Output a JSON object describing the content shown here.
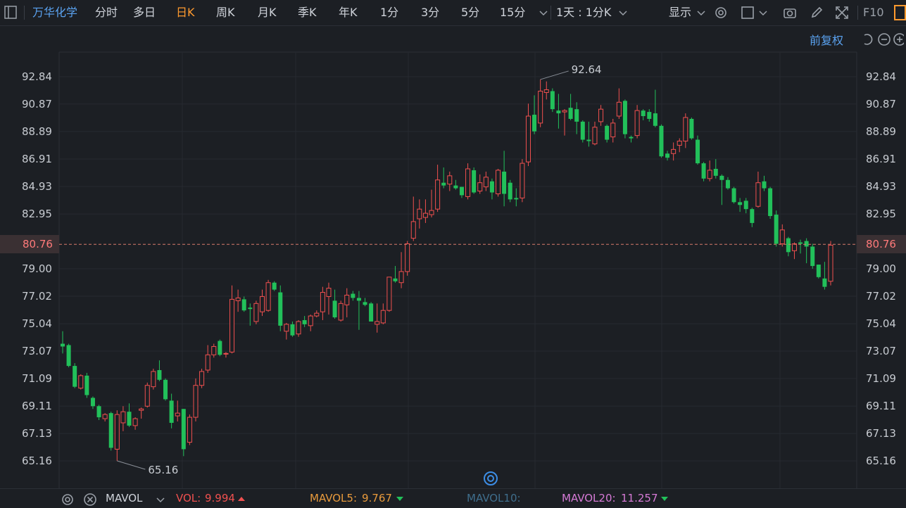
{
  "toolbar": {
    "stock_name": "万华化学",
    "periods": [
      "分时",
      "多日",
      "日K",
      "周K",
      "月K",
      "季K",
      "年K",
      "1分",
      "3分",
      "5分",
      "15分"
    ],
    "active_period": "日K",
    "interval_select": "1天 : 1分K",
    "display_menu": "显示",
    "f10": "F10"
  },
  "chart_header": {
    "adjust_mode": "前复权"
  },
  "axis": {
    "y_ticks": [
      "92.84",
      "90.87",
      "88.89",
      "86.91",
      "84.93",
      "82.95",
      "79.00",
      "77.02",
      "75.04",
      "73.07",
      "71.09",
      "69.11",
      "67.13",
      "65.16"
    ],
    "current_price": "80.76"
  },
  "annotations": {
    "high": "92.64",
    "low": "65.16"
  },
  "indicator_bar": {
    "name": "MAVOL",
    "vol_label": "VOL:",
    "vol_value": "9.994",
    "mavol5_label": "MAVOL5:",
    "mavol5_value": "9.767",
    "mavol10_label": "MAVOL10:",
    "mavol20_label": "MAVOL20:",
    "mavol20_value": "11.257"
  },
  "colors": {
    "up": "#f0504f",
    "down": "#22c05a",
    "accent": "#ff9a2e",
    "link": "#5aa2f0",
    "mavol5": "#e89a3c",
    "mavol10": "#3f6e8c",
    "mavol20": "#d67ad6"
  },
  "chart_data": {
    "type": "candlestick",
    "ylim": [
      65.16,
      92.84
    ],
    "current_price": 80.76,
    "high": 92.64,
    "low": 65.16,
    "candles": [
      {
        "o": 73.6,
        "h": 74.5,
        "l": 72.9,
        "c": 73.4
      },
      {
        "o": 73.5,
        "h": 73.6,
        "l": 71.9,
        "c": 72.0
      },
      {
        "o": 72.0,
        "h": 72.2,
        "l": 70.4,
        "c": 70.5
      },
      {
        "o": 70.4,
        "h": 71.4,
        "l": 70.3,
        "c": 71.3
      },
      {
        "o": 71.3,
        "h": 71.5,
        "l": 69.7,
        "c": 69.9
      },
      {
        "o": 69.7,
        "h": 69.8,
        "l": 68.9,
        "c": 69.1
      },
      {
        "o": 69.1,
        "h": 69.2,
        "l": 68.1,
        "c": 68.3
      },
      {
        "o": 68.2,
        "h": 68.6,
        "l": 68.0,
        "c": 68.5
      },
      {
        "o": 68.6,
        "h": 68.7,
        "l": 65.9,
        "c": 66.1
      },
      {
        "o": 66.0,
        "h": 68.8,
        "l": 65.16,
        "c": 68.5
      },
      {
        "o": 67.9,
        "h": 69.1,
        "l": 67.3,
        "c": 68.7
      },
      {
        "o": 68.7,
        "h": 69.3,
        "l": 67.6,
        "c": 67.7
      },
      {
        "o": 67.7,
        "h": 68.3,
        "l": 67.4,
        "c": 68.2
      },
      {
        "o": 68.8,
        "h": 69.0,
        "l": 68.2,
        "c": 68.9
      },
      {
        "o": 69.1,
        "h": 70.8,
        "l": 69.0,
        "c": 70.6
      },
      {
        "o": 70.5,
        "h": 71.8,
        "l": 70.3,
        "c": 71.6
      },
      {
        "o": 71.7,
        "h": 72.4,
        "l": 70.9,
        "c": 71.0
      },
      {
        "o": 71.0,
        "h": 71.1,
        "l": 69.5,
        "c": 69.6
      },
      {
        "o": 69.5,
        "h": 70.0,
        "l": 67.5,
        "c": 67.9
      },
      {
        "o": 68.4,
        "h": 69.5,
        "l": 68.0,
        "c": 68.6
      },
      {
        "o": 68.9,
        "h": 68.9,
        "l": 65.5,
        "c": 66.0
      },
      {
        "o": 66.5,
        "h": 68.5,
        "l": 66.3,
        "c": 68.3
      },
      {
        "o": 68.3,
        "h": 71.1,
        "l": 68.0,
        "c": 70.6
      },
      {
        "o": 70.6,
        "h": 71.8,
        "l": 70.4,
        "c": 71.6
      },
      {
        "o": 71.7,
        "h": 73.5,
        "l": 71.5,
        "c": 72.8
      },
      {
        "o": 72.8,
        "h": 73.6,
        "l": 72.6,
        "c": 73.4
      },
      {
        "o": 73.8,
        "h": 73.9,
        "l": 72.7,
        "c": 72.8
      },
      {
        "o": 72.9,
        "h": 73.0,
        "l": 72.6,
        "c": 72.9
      },
      {
        "o": 73.0,
        "h": 77.8,
        "l": 72.9,
        "c": 76.8
      },
      {
        "o": 76.7,
        "h": 77.5,
        "l": 75.9,
        "c": 76.9
      },
      {
        "o": 76.8,
        "h": 77.0,
        "l": 75.9,
        "c": 76.0
      },
      {
        "o": 76.2,
        "h": 76.5,
        "l": 74.9,
        "c": 76.1
      },
      {
        "o": 75.2,
        "h": 76.7,
        "l": 75.0,
        "c": 76.5
      },
      {
        "o": 75.9,
        "h": 77.5,
        "l": 75.6,
        "c": 77.0
      },
      {
        "o": 76.0,
        "h": 78.2,
        "l": 75.9,
        "c": 78.0
      },
      {
        "o": 78.0,
        "h": 78.1,
        "l": 77.4,
        "c": 77.5
      },
      {
        "o": 77.3,
        "h": 77.8,
        "l": 74.5,
        "c": 74.9
      },
      {
        "o": 74.5,
        "h": 75.1,
        "l": 73.9,
        "c": 75.0
      },
      {
        "o": 75.0,
        "h": 75.2,
        "l": 74.1,
        "c": 74.2
      },
      {
        "o": 74.3,
        "h": 75.3,
        "l": 74.1,
        "c": 75.2
      },
      {
        "o": 75.3,
        "h": 75.6,
        "l": 74.8,
        "c": 75.0
      },
      {
        "o": 74.9,
        "h": 75.7,
        "l": 74.5,
        "c": 75.6
      },
      {
        "o": 75.6,
        "h": 76.0,
        "l": 75.5,
        "c": 75.8
      },
      {
        "o": 75.9,
        "h": 77.7,
        "l": 75.3,
        "c": 77.3
      },
      {
        "o": 77.0,
        "h": 78.0,
        "l": 75.7,
        "c": 77.6
      },
      {
        "o": 76.7,
        "h": 77.5,
        "l": 75.4,
        "c": 75.5
      },
      {
        "o": 75.3,
        "h": 76.7,
        "l": 75.2,
        "c": 76.5
      },
      {
        "o": 76.4,
        "h": 77.6,
        "l": 75.5,
        "c": 77.1
      },
      {
        "o": 77.2,
        "h": 77.4,
        "l": 76.7,
        "c": 76.9
      },
      {
        "o": 76.9,
        "h": 77.4,
        "l": 74.6,
        "c": 76.7
      },
      {
        "o": 76.6,
        "h": 76.9,
        "l": 76.3,
        "c": 76.4
      },
      {
        "o": 76.5,
        "h": 76.6,
        "l": 75.2,
        "c": 75.2
      },
      {
        "o": 75.0,
        "h": 76.5,
        "l": 74.4,
        "c": 75.2
      },
      {
        "o": 75.1,
        "h": 76.5,
        "l": 75.0,
        "c": 76.0
      },
      {
        "o": 76.0,
        "h": 78.4,
        "l": 75.9,
        "c": 78.4
      },
      {
        "o": 78.3,
        "h": 79.2,
        "l": 78.0,
        "c": 78.1
      },
      {
        "o": 78.0,
        "h": 80.2,
        "l": 77.6,
        "c": 78.8
      },
      {
        "o": 78.8,
        "h": 81.0,
        "l": 78.5,
        "c": 80.8
      },
      {
        "o": 81.2,
        "h": 84.2,
        "l": 81.0,
        "c": 82.4
      },
      {
        "o": 82.6,
        "h": 84.0,
        "l": 81.9,
        "c": 83.3
      },
      {
        "o": 82.7,
        "h": 84.0,
        "l": 82.3,
        "c": 83.0
      },
      {
        "o": 82.9,
        "h": 84.7,
        "l": 82.7,
        "c": 83.2
      },
      {
        "o": 83.3,
        "h": 86.5,
        "l": 83.1,
        "c": 85.4
      },
      {
        "o": 85.2,
        "h": 86.3,
        "l": 84.8,
        "c": 85.0
      },
      {
        "o": 85.1,
        "h": 86.0,
        "l": 84.6,
        "c": 85.7
      },
      {
        "o": 85.0,
        "h": 85.4,
        "l": 84.7,
        "c": 84.8
      },
      {
        "o": 84.9,
        "h": 84.9,
        "l": 84.1,
        "c": 84.3
      },
      {
        "o": 84.2,
        "h": 86.6,
        "l": 84.0,
        "c": 86.2
      },
      {
        "o": 86.1,
        "h": 86.3,
        "l": 84.4,
        "c": 84.5
      },
      {
        "o": 84.6,
        "h": 85.8,
        "l": 84.4,
        "c": 85.2
      },
      {
        "o": 84.9,
        "h": 86.0,
        "l": 84.6,
        "c": 85.6
      },
      {
        "o": 85.3,
        "h": 85.5,
        "l": 84.0,
        "c": 84.5
      },
      {
        "o": 84.4,
        "h": 86.2,
        "l": 84.2,
        "c": 86.1
      },
      {
        "o": 86.0,
        "h": 87.5,
        "l": 83.5,
        "c": 84.4
      },
      {
        "o": 85.2,
        "h": 85.4,
        "l": 83.8,
        "c": 84.0
      },
      {
        "o": 84.1,
        "h": 84.8,
        "l": 83.5,
        "c": 84.0
      },
      {
        "o": 84.1,
        "h": 86.9,
        "l": 83.8,
        "c": 86.6
      },
      {
        "o": 86.7,
        "h": 90.9,
        "l": 86.4,
        "c": 90.0
      },
      {
        "o": 90.1,
        "h": 91.5,
        "l": 88.7,
        "c": 88.9
      },
      {
        "o": 89.5,
        "h": 92.64,
        "l": 89.2,
        "c": 91.8
      },
      {
        "o": 91.7,
        "h": 92.5,
        "l": 91.2,
        "c": 91.9
      },
      {
        "o": 91.8,
        "h": 92.0,
        "l": 90.3,
        "c": 90.5
      },
      {
        "o": 90.4,
        "h": 91.6,
        "l": 89.1,
        "c": 90.2
      },
      {
        "o": 90.3,
        "h": 90.5,
        "l": 88.6,
        "c": 90.4
      },
      {
        "o": 90.6,
        "h": 91.6,
        "l": 89.7,
        "c": 89.8
      },
      {
        "o": 90.5,
        "h": 91.0,
        "l": 88.7,
        "c": 89.6
      },
      {
        "o": 89.6,
        "h": 89.7,
        "l": 88.1,
        "c": 88.3
      },
      {
        "o": 88.3,
        "h": 89.6,
        "l": 87.8,
        "c": 88.2
      },
      {
        "o": 88.0,
        "h": 89.6,
        "l": 87.9,
        "c": 89.2
      },
      {
        "o": 89.6,
        "h": 90.8,
        "l": 89.3,
        "c": 90.5
      },
      {
        "o": 89.3,
        "h": 89.4,
        "l": 88.1,
        "c": 88.3
      },
      {
        "o": 88.5,
        "h": 89.8,
        "l": 88.1,
        "c": 89.5
      },
      {
        "o": 90.0,
        "h": 92.0,
        "l": 89.8,
        "c": 91.0
      },
      {
        "o": 91.1,
        "h": 91.2,
        "l": 88.4,
        "c": 88.7
      },
      {
        "o": 88.5,
        "h": 88.6,
        "l": 88.1,
        "c": 88.4
      },
      {
        "o": 88.6,
        "h": 90.8,
        "l": 88.4,
        "c": 90.4
      },
      {
        "o": 90.4,
        "h": 90.5,
        "l": 89.7,
        "c": 90.0
      },
      {
        "o": 90.3,
        "h": 90.5,
        "l": 89.6,
        "c": 89.8
      },
      {
        "o": 90.2,
        "h": 91.9,
        "l": 89.2,
        "c": 89.3
      },
      {
        "o": 89.3,
        "h": 89.4,
        "l": 87.0,
        "c": 87.1
      },
      {
        "o": 87.3,
        "h": 87.5,
        "l": 86.8,
        "c": 87.0
      },
      {
        "o": 87.3,
        "h": 88.1,
        "l": 86.8,
        "c": 87.6
      },
      {
        "o": 87.9,
        "h": 88.4,
        "l": 87.4,
        "c": 88.2
      },
      {
        "o": 88.2,
        "h": 90.2,
        "l": 87.7,
        "c": 89.9
      },
      {
        "o": 89.8,
        "h": 89.9,
        "l": 88.3,
        "c": 88.4
      },
      {
        "o": 88.3,
        "h": 88.6,
        "l": 86.5,
        "c": 86.6
      },
      {
        "o": 86.6,
        "h": 86.7,
        "l": 85.3,
        "c": 85.5
      },
      {
        "o": 85.5,
        "h": 86.8,
        "l": 85.3,
        "c": 86.1
      },
      {
        "o": 86.2,
        "h": 86.9,
        "l": 85.5,
        "c": 85.7
      },
      {
        "o": 85.7,
        "h": 85.8,
        "l": 83.6,
        "c": 85.4
      },
      {
        "o": 85.4,
        "h": 85.6,
        "l": 84.7,
        "c": 84.8
      },
      {
        "o": 84.8,
        "h": 84.9,
        "l": 83.7,
        "c": 83.8
      },
      {
        "o": 83.8,
        "h": 84.1,
        "l": 83.1,
        "c": 83.6
      },
      {
        "o": 83.9,
        "h": 84.1,
        "l": 83.0,
        "c": 83.3
      },
      {
        "o": 83.3,
        "h": 83.4,
        "l": 82.0,
        "c": 82.3
      },
      {
        "o": 83.5,
        "h": 86.0,
        "l": 83.4,
        "c": 85.2
      },
      {
        "o": 85.3,
        "h": 85.7,
        "l": 84.6,
        "c": 84.8
      },
      {
        "o": 84.8,
        "h": 84.9,
        "l": 82.6,
        "c": 82.8
      },
      {
        "o": 82.9,
        "h": 83.2,
        "l": 80.6,
        "c": 80.8
      },
      {
        "o": 80.8,
        "h": 82.2,
        "l": 80.6,
        "c": 81.8
      },
      {
        "o": 81.2,
        "h": 81.3,
        "l": 79.9,
        "c": 80.2
      },
      {
        "o": 80.3,
        "h": 80.9,
        "l": 79.7,
        "c": 80.8
      },
      {
        "o": 80.9,
        "h": 81.1,
        "l": 80.1,
        "c": 80.8
      },
      {
        "o": 81.0,
        "h": 81.2,
        "l": 79.4,
        "c": 80.6
      },
      {
        "o": 80.6,
        "h": 80.8,
        "l": 79.0,
        "c": 79.2
      },
      {
        "o": 79.3,
        "h": 79.3,
        "l": 78.3,
        "c": 78.4
      },
      {
        "o": 78.3,
        "h": 79.5,
        "l": 77.5,
        "c": 77.7
      },
      {
        "o": 78.1,
        "h": 81.0,
        "l": 77.8,
        "c": 80.7
      }
    ]
  }
}
